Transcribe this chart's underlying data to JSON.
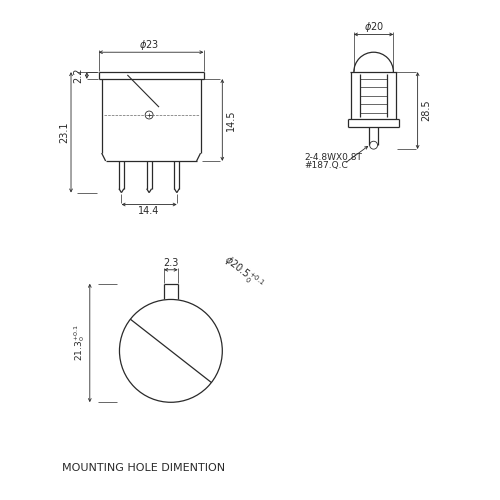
{
  "bg_color": "#ffffff",
  "line_color": "#2a2a2a",
  "title": "MOUNTING HOLE DIMENTION",
  "title_fontsize": 8.0,
  "dim_fontsize": 7.0,
  "label_fontsize": 6.5
}
